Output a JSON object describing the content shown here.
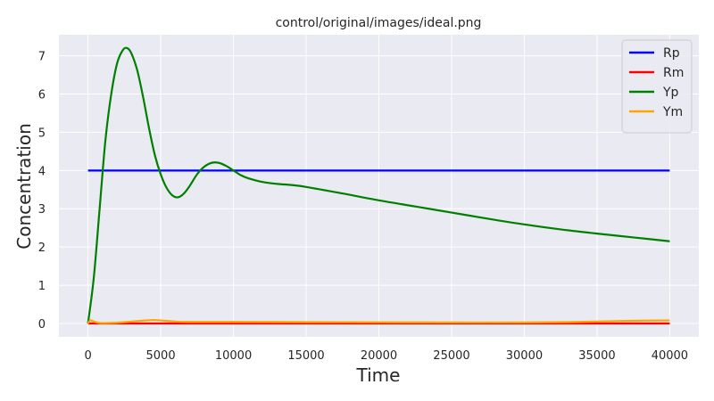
{
  "chart_data": {
    "type": "line",
    "title": "control/original/images/ideal.png",
    "xlabel": "Time",
    "ylabel": "Concentration",
    "xlim": [
      -2000,
      42000
    ],
    "ylim": [
      -0.35,
      7.55
    ],
    "xticks": [
      0,
      5000,
      10000,
      15000,
      20000,
      25000,
      30000,
      35000,
      40000
    ],
    "yticks": [
      0,
      1,
      2,
      3,
      4,
      5,
      6,
      7
    ],
    "grid": true,
    "legend_position": "top-right",
    "background": "#eaeaf2",
    "series": [
      {
        "name": "Rp",
        "color": "#0000ff",
        "x": [
          0,
          40000
        ],
        "y": [
          4.0,
          4.0
        ]
      },
      {
        "name": "Rm",
        "color": "#ff0000",
        "x": [
          0,
          10000,
          20000,
          30000,
          40000
        ],
        "y": [
          0.0,
          0.0,
          0.0,
          0.0,
          0.0
        ]
      },
      {
        "name": "Yp",
        "color": "#008000",
        "x": [
          0,
          400,
          800,
          1200,
          1600,
          2000,
          2400,
          2700,
          3000,
          3400,
          3800,
          4200,
          4600,
          5000,
          5400,
          5800,
          6200,
          6600,
          7000,
          7500,
          8000,
          8500,
          9000,
          9500,
          10000,
          10500,
          11000,
          12000,
          13000,
          14000,
          15000,
          17500,
          20000,
          22500,
          25000,
          27500,
          30000,
          32500,
          35000,
          37500,
          40000
        ],
        "y": [
          0.0,
          1.2,
          3.0,
          4.8,
          6.0,
          6.8,
          7.15,
          7.2,
          7.05,
          6.6,
          5.9,
          5.1,
          4.4,
          3.9,
          3.55,
          3.35,
          3.3,
          3.4,
          3.6,
          3.9,
          4.1,
          4.2,
          4.2,
          4.12,
          4.0,
          3.88,
          3.8,
          3.7,
          3.65,
          3.62,
          3.57,
          3.4,
          3.22,
          3.06,
          2.9,
          2.74,
          2.59,
          2.46,
          2.35,
          2.25,
          2.15
        ]
      },
      {
        "name": "Ym",
        "color": "#ffa500",
        "x": [
          0,
          150,
          400,
          700,
          1000,
          2000,
          3000,
          4000,
          4500,
          5000,
          6000,
          7000,
          10000,
          15000,
          20000,
          25000,
          30000,
          33000,
          35000,
          37500,
          40000
        ],
        "y": [
          0.0,
          0.08,
          0.05,
          0.02,
          0.01,
          0.02,
          0.05,
          0.08,
          0.09,
          0.08,
          0.05,
          0.04,
          0.04,
          0.035,
          0.03,
          0.025,
          0.025,
          0.035,
          0.05,
          0.07,
          0.08
        ]
      }
    ]
  }
}
